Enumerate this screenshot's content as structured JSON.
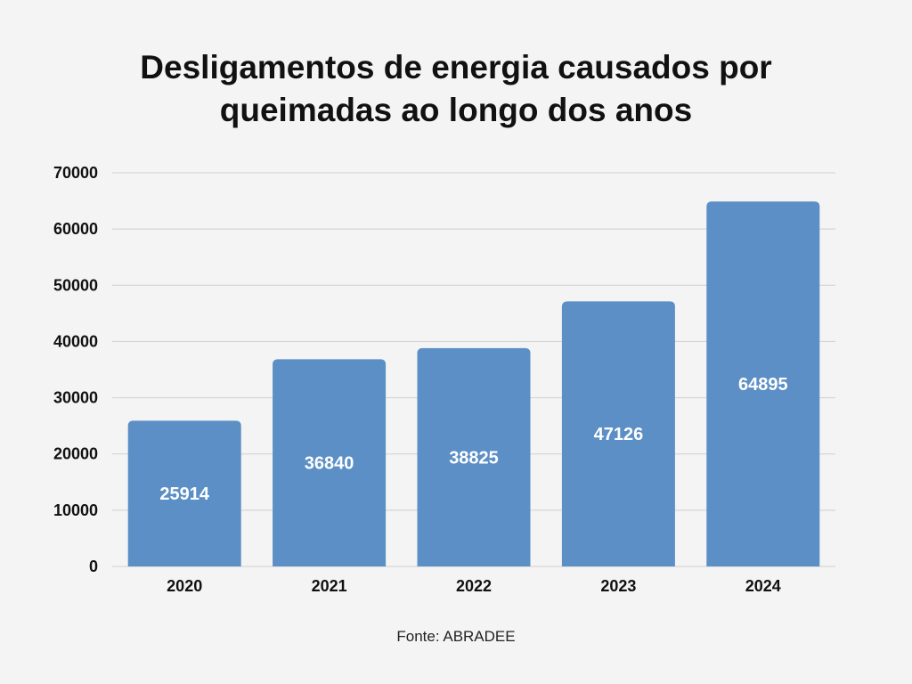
{
  "chart_data": {
    "type": "bar",
    "title_lines": [
      "Desligamentos de energia causados por",
      "queimadas ao longo dos anos"
    ],
    "categories": [
      "2020",
      "2021",
      "2022",
      "2023",
      "2024"
    ],
    "values": [
      25914,
      36840,
      38825,
      47126,
      64895
    ],
    "value_labels": [
      "25914",
      "36840",
      "38825",
      "47126",
      "64895"
    ],
    "ylim": [
      0,
      70000
    ],
    "yticks": [
      0,
      10000,
      20000,
      30000,
      40000,
      50000,
      60000,
      70000
    ],
    "ytick_labels": [
      "0",
      "10000",
      "20000",
      "30000",
      "40000",
      "50000",
      "60000",
      "70000"
    ],
    "xlabel": "",
    "ylabel": "",
    "grid": true,
    "legend": "none",
    "bar_color": "#5b8fc5",
    "grid_color": "#cfcfcf",
    "source": "Fonte: ABRADEE"
  }
}
